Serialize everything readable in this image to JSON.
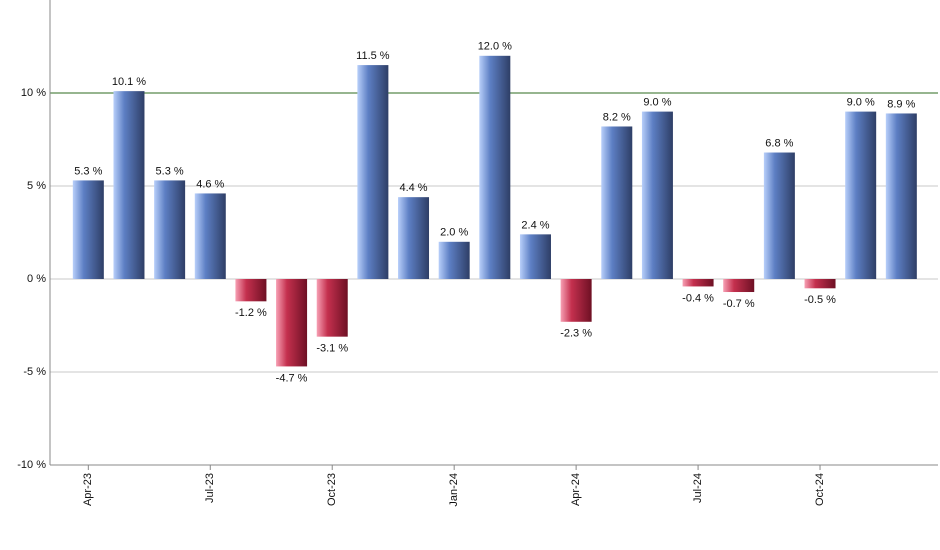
{
  "chart_data": {
    "type": "bar",
    "categories": [
      "Apr-23",
      null,
      null,
      "Jul-23",
      null,
      null,
      "Oct-23",
      null,
      null,
      "Jan-24",
      null,
      null,
      "Apr-24",
      null,
      null,
      "Jul-24",
      null,
      null,
      "Oct-24",
      null,
      null
    ],
    "values": [
      5.3,
      10.1,
      5.3,
      4.6,
      -1.2,
      -4.7,
      -3.1,
      11.5,
      4.4,
      2.0,
      12.0,
      2.4,
      -2.3,
      8.2,
      9.0,
      -0.4,
      -0.7,
      6.8,
      -0.5,
      9.0,
      8.9
    ],
    "value_labels": [
      "5.3 %",
      "10.1 %",
      "5.3 %",
      "4.6 %",
      "-1.2 %",
      "-4.7 %",
      "-3.1 %",
      "11.5 %",
      "4.4 %",
      "2.0 %",
      "12.0 %",
      "2.4 %",
      "-2.3 %",
      "8.2 %",
      "9.0 %",
      "-0.4 %",
      "-0.7 %",
      "6.8 %",
      "-0.5 %",
      "9.0 %",
      "8.9 %"
    ],
    "color": "#5d7fc4",
    "negative_color": "#c4304e",
    "ylim": [
      -10,
      15
    ],
    "yticks": [
      {
        "value": -10,
        "label": "-10 %"
      },
      {
        "value": -5,
        "label": "-5 %"
      },
      {
        "value": 0,
        "label": "0 %"
      },
      {
        "value": 5,
        "label": "5 %"
      },
      {
        "value": 10,
        "label": "10 %"
      }
    ],
    "grid": true,
    "reference_line": {
      "value": 10,
      "color": "#2e6b1f"
    }
  }
}
